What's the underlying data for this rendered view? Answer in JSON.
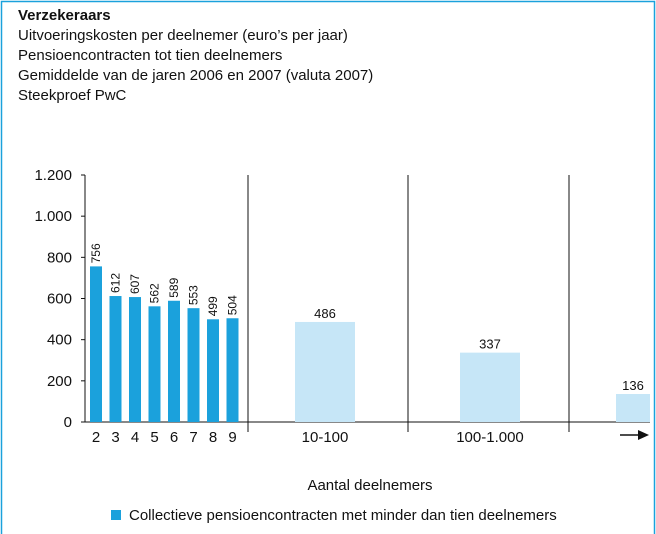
{
  "chart_data": {
    "type": "bar",
    "title": "Verzekeraars",
    "subtitle": [
      "Uitvoeringskosten per deelnemer (euro’s per jaar)",
      "Pensioencontracten tot tien deelnemers",
      "Gemiddelde van de jaren 2006 en 2007 (valuta 2007)",
      "Steekproef PwC"
    ],
    "categories": [
      "2",
      "3",
      "4",
      "5",
      "6",
      "7",
      "8",
      "9",
      "10-100",
      "100-1.000",
      null
    ],
    "series": [
      {
        "name": "Collectieve pensioencontracten met minder dan tien deelnemers",
        "color": "#1ba1dc",
        "values": [
          756,
          612,
          607,
          562,
          589,
          553,
          499,
          504,
          486,
          337,
          136
        ]
      }
    ],
    "bar_colors": [
      "#1ba1dc",
      "#1ba1dc",
      "#1ba1dc",
      "#1ba1dc",
      "#1ba1dc",
      "#1ba1dc",
      "#1ba1dc",
      "#1ba1dc",
      "#c6e6f7",
      "#c6e6f7",
      "#c6e6f7"
    ],
    "xlabel": "Aantal deelnemers",
    "ylim": [
      0,
      1200
    ],
    "yticks": [
      0,
      200,
      400,
      600,
      800,
      {
        "value": 1000,
        "label": "1.000"
      },
      {
        "value": 1200,
        "label": "1.200"
      }
    ]
  }
}
